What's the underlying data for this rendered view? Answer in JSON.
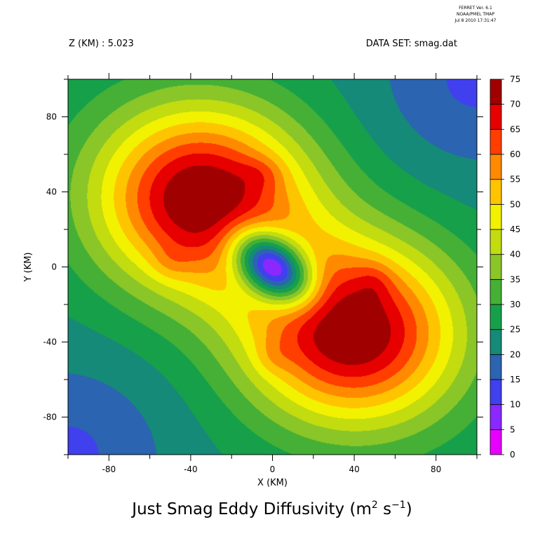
{
  "header": {
    "software_lines": [
      "FERRET Ver. 6.1",
      "NOAA/PMEL TMAP",
      "Jul 8 2010 17:31:47"
    ],
    "z_label": "Z (KM) : 5.023",
    "dataset_label": "DATA SET: smag.dat"
  },
  "chart_data": {
    "type": "heatmap",
    "title_main": "Just Smag Eddy Diffusivity (m",
    "title_sup1": "2",
    "title_mid": " s",
    "title_sup2": "−1",
    "title_end": ")",
    "xlabel": "X (KM)",
    "ylabel": "Y (KM)",
    "xlim": [
      -100,
      100
    ],
    "ylim": [
      -100,
      100
    ],
    "x_ticks": [
      -80,
      -40,
      0,
      40,
      80
    ],
    "y_ticks": [
      -80,
      -40,
      0,
      40,
      80
    ],
    "colorbar": {
      "levels": [
        0,
        5,
        10,
        15,
        20,
        25,
        30,
        35,
        40,
        45,
        50,
        55,
        60,
        65,
        70,
        75
      ],
      "colors": [
        "#e800ff",
        "#8a28ff",
        "#4040ee",
        "#2b64b0",
        "#158a78",
        "#17a04a",
        "#45b035",
        "#8ac628",
        "#c2dc10",
        "#f2f200",
        "#ffc400",
        "#ff8a00",
        "#ff3e00",
        "#e60000",
        "#a00000"
      ]
    },
    "features": [
      {
        "name": "maximum",
        "x": -35,
        "y": 37,
        "value": 72
      },
      {
        "name": "maximum",
        "x": 40,
        "y": -35,
        "value": 72
      },
      {
        "name": "minimum",
        "x": 0,
        "y": 0,
        "value": 2
      }
    ]
  }
}
